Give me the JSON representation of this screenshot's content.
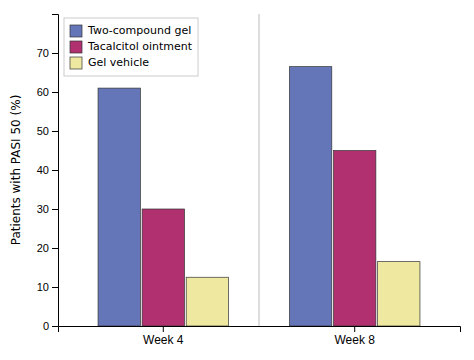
{
  "chart_data": {
    "type": "bar",
    "categories": [
      "Week 4",
      "Week 8"
    ],
    "series": [
      {
        "name": "Two-compound gel",
        "color": "#6475b8",
        "values": [
          61,
          66.5
        ]
      },
      {
        "name": "Tacalcitol ointment",
        "color": "#b03070",
        "values": [
          30,
          45
        ]
      },
      {
        "name": "Gel vehicle",
        "color": "#eee8a0",
        "values": [
          12.5,
          16.5
        ]
      }
    ],
    "ylabel": "Patients with PASI 50 (%)",
    "ylim": [
      0,
      80
    ],
    "yticks": [
      0,
      10,
      20,
      30,
      40,
      50,
      60,
      70
    ],
    "grid": false,
    "legend": "upper left"
  }
}
